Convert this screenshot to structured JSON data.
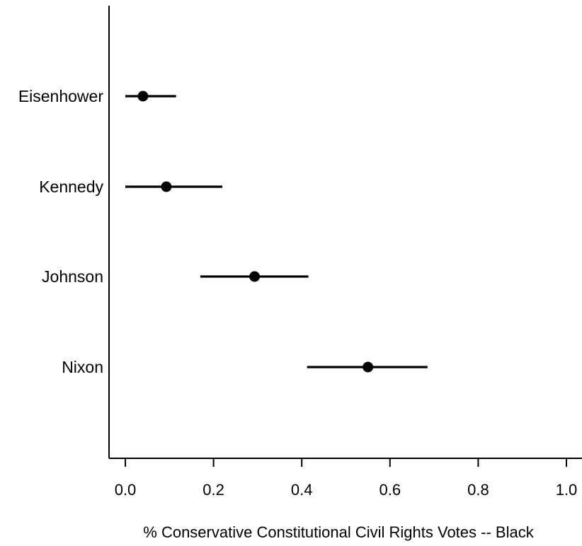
{
  "chart_data": {
    "type": "scatter",
    "subtype": "point-estimate-with-interval",
    "title": "",
    "xlabel": "% Conservative Constitutional Civil Rights Votes -- Black",
    "ylabel": "",
    "xlim": [
      0.0,
      1.0
    ],
    "x_ticks": [
      "0.0",
      "0.2",
      "0.4",
      "0.6",
      "0.8",
      "1.0"
    ],
    "grid": false,
    "categories": [
      "Eisenhower",
      "Kennedy",
      "Johnson",
      "Nixon"
    ],
    "points": [
      {
        "label": "Eisenhower",
        "estimate": 0.04,
        "lower": 0.0,
        "upper": 0.115
      },
      {
        "label": "Kennedy",
        "estimate": 0.093,
        "lower": 0.0,
        "upper": 0.22
      },
      {
        "label": "Johnson",
        "estimate": 0.293,
        "lower": 0.17,
        "upper": 0.415
      },
      {
        "label": "Nixon",
        "estimate": 0.55,
        "lower": 0.412,
        "upper": 0.685
      }
    ]
  }
}
